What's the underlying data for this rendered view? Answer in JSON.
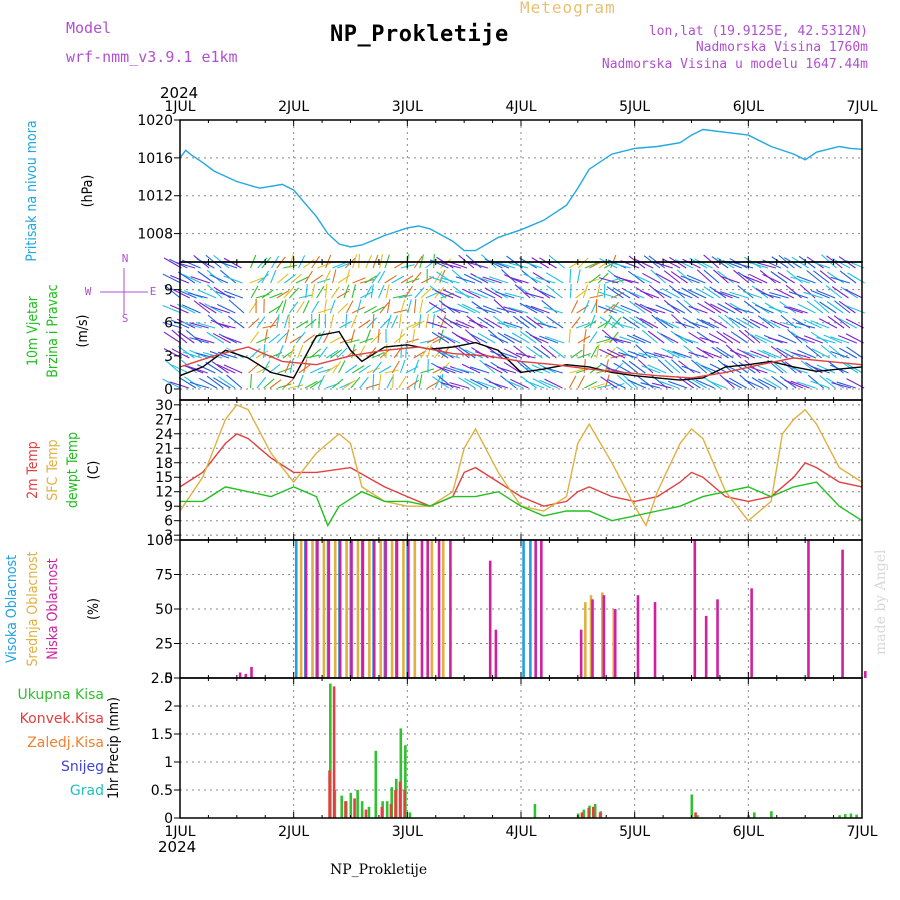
{
  "header": {
    "model_label": "Model",
    "model_name": "wrf-nmm_v3.9.1  e1km",
    "title": "NP_Prokletije",
    "subtitle": "Meteogram",
    "location": "lon,lat (19.9125E, 42.5312N)",
    "elevation": "Nadmorska Visina 1760m",
    "model_elevation": "Nadmorska Visina u modelu 1647.44m",
    "year_top": "2024",
    "year_bottom": "2024",
    "footer": "NP_Prokletije",
    "watermark": "made by Angel",
    "colors": {
      "model": "#b050d0",
      "title": "#000000",
      "subtitle": "#e8c070",
      "info": "#b050d0"
    }
  },
  "x_axis": {
    "labels": [
      "1JUL",
      "2JUL",
      "3JUL",
      "4JUL",
      "5JUL",
      "6JUL",
      "7JUL"
    ],
    "range_days": [
      0,
      6
    ]
  },
  "panels": [
    {
      "id": "pressure",
      "labels": [
        {
          "text": "Pritisak na nivou mora",
          "color": "#20a8e0"
        },
        {
          "text": "(hPa)",
          "color": "#000000"
        }
      ]
    },
    {
      "id": "wind",
      "labels": [
        {
          "text": "10m Vjetar",
          "color": "#20c020"
        },
        {
          "text": "Brzina i Pravac",
          "color": "#20c020"
        },
        {
          "text": "(m/s)",
          "color": "#000000"
        }
      ],
      "compass": {
        "north": "N",
        "south": "S",
        "west": "W",
        "east": "E",
        "color": "#b050d0"
      }
    },
    {
      "id": "temp",
      "labels": [
        {
          "text": "2m Temp",
          "color": "#e04040"
        },
        {
          "text": "SFC Temp",
          "color": "#e0b040"
        },
        {
          "text": "dewpt Temp",
          "color": "#20c020"
        },
        {
          "text": "(C)",
          "color": "#000000"
        }
      ]
    },
    {
      "id": "cloud",
      "labels": [
        {
          "text": "Visoka Oblacnost",
          "color": "#20a0e0"
        },
        {
          "text": "Srednja Oblacnost",
          "color": "#e0b040"
        },
        {
          "text": "Niska Oblacnost",
          "color": "#d020a0"
        },
        {
          "text": "(%)",
          "color": "#000000"
        }
      ]
    },
    {
      "id": "precip",
      "labels": [
        {
          "text": "1hr Precip (mm)",
          "color": "#000000"
        }
      ],
      "legend": [
        {
          "text": "Ukupna Kisa",
          "color": "#30c030"
        },
        {
          "text": "Konvek.Kisa",
          "color": "#e04040"
        },
        {
          "text": "Zaledj.Kisa",
          "color": "#f08030"
        },
        {
          "text": "Snijeg",
          "color": "#4040e0"
        },
        {
          "text": "Grad",
          "color": "#20c0c0"
        }
      ]
    }
  ],
  "chart_data": [
    {
      "type": "line",
      "ylabel": "(hPa)",
      "ylim": [
        1005,
        1020
      ],
      "yticks": [
        "1008",
        "1012",
        "1016",
        "1020"
      ],
      "grid": true,
      "series": [
        {
          "color": "#20a8e0",
          "x": [
            0,
            0.05,
            0.1,
            0.2,
            0.3,
            0.5,
            0.7,
            0.9,
            1.0,
            1.1,
            1.2,
            1.3,
            1.4,
            1.5,
            1.6,
            1.8,
            2.0,
            2.1,
            2.2,
            2.4,
            2.5,
            2.6,
            2.8,
            3.0,
            3.2,
            3.4,
            3.5,
            3.6,
            3.8,
            4.0,
            4.2,
            4.4,
            4.5,
            4.6,
            4.8,
            5.0,
            5.2,
            5.4,
            5.5,
            5.6,
            5.8,
            5.9,
            6.0
          ],
          "y": [
            1016,
            1016.8,
            1016.3,
            1015.5,
            1014.6,
            1013.5,
            1012.8,
            1013.2,
            1012.6,
            1011.2,
            1009.8,
            1008.0,
            1006.9,
            1006.6,
            1006.8,
            1007.8,
            1008.6,
            1008.8,
            1008.5,
            1007.2,
            1006.2,
            1006.2,
            1007.6,
            1008.4,
            1009.4,
            1011.0,
            1012.8,
            1014.8,
            1016.4,
            1017.0,
            1017.2,
            1017.6,
            1018.4,
            1019.0,
            1018.7,
            1018.4,
            1017.2,
            1016.4,
            1015.8,
            1016.6,
            1017.2,
            1017.0,
            1016.9
          ]
        }
      ]
    },
    {
      "type": "line",
      "ylabel": "(m/s)",
      "ylim": [
        -1,
        11.5
      ],
      "yticks": [
        "0",
        "3",
        "6",
        "9"
      ],
      "grid": true,
      "series": [
        {
          "name": "",
          "color": "#000000",
          "x": [
            0,
            0.2,
            0.4,
            0.6,
            0.8,
            1.0,
            1.2,
            1.4,
            1.5,
            1.6,
            1.8,
            2.0,
            2.2,
            2.4,
            2.6,
            2.8,
            3.0,
            3.2,
            3.4,
            3.6,
            3.8,
            4.0,
            4.2,
            4.4,
            4.6,
            4.8,
            5.0,
            5.2,
            5.4,
            5.6,
            5.8,
            6.0
          ],
          "y": [
            1.2,
            2.0,
            3.5,
            2.8,
            1.5,
            1.0,
            4.8,
            5.2,
            3.5,
            2.5,
            3.8,
            4.0,
            3.6,
            3.8,
            4.2,
            3.5,
            1.5,
            1.8,
            2.2,
            2.0,
            1.5,
            1.2,
            1.0,
            0.8,
            1.0,
            2.0,
            2.2,
            2.5,
            2.0,
            1.6,
            1.8,
            2.0
          ]
        },
        {
          "name": "",
          "color": "#e04040",
          "x": [
            0,
            0.3,
            0.6,
            0.9,
            1.2,
            1.5,
            1.8,
            2.1,
            2.4,
            2.7,
            3.0,
            3.3,
            3.6,
            3.9,
            4.2,
            4.5,
            4.8,
            5.1,
            5.4,
            5.7,
            6.0
          ],
          "y": [
            2.0,
            3.0,
            3.8,
            2.5,
            2.2,
            3.0,
            3.5,
            3.8,
            3.2,
            3.0,
            2.5,
            2.2,
            1.8,
            1.5,
            1.2,
            1.0,
            1.5,
            2.2,
            2.8,
            2.5,
            2.2
          ]
        }
      ]
    },
    {
      "type": "line",
      "ylabel": "(C)",
      "ylim": [
        2,
        31
      ],
      "yticks": [
        "3",
        "6",
        "9",
        "12",
        "15",
        "18",
        "21",
        "24",
        "27",
        "30"
      ],
      "grid": true,
      "series": [
        {
          "name": "2m Temp",
          "color": "#e04040",
          "x": [
            0,
            0.2,
            0.4,
            0.5,
            0.6,
            0.8,
            1.0,
            1.2,
            1.5,
            1.8,
            2.0,
            2.2,
            2.4,
            2.5,
            2.6,
            2.8,
            3.0,
            3.2,
            3.4,
            3.5,
            3.6,
            3.8,
            4.0,
            4.2,
            4.4,
            4.5,
            4.6,
            4.8,
            5.0,
            5.2,
            5.4,
            5.5,
            5.6,
            5.8,
            6.0
          ],
          "y": [
            13,
            16,
            22,
            24,
            23,
            19,
            16,
            16,
            17,
            13,
            11,
            9,
            11,
            16,
            17,
            14,
            11,
            9,
            10,
            12,
            13,
            11,
            10,
            11,
            14,
            16,
            15,
            11,
            10,
            11,
            15,
            18,
            17,
            14,
            13
          ]
        },
        {
          "name": "SFC Temp",
          "color": "#e0b040",
          "x": [
            0,
            0.2,
            0.4,
            0.5,
            0.6,
            0.8,
            1.0,
            1.2,
            1.3,
            1.4,
            1.5,
            1.6,
            1.8,
            2.0,
            2.2,
            2.4,
            2.5,
            2.6,
            2.8,
            3.0,
            3.2,
            3.4,
            3.5,
            3.6,
            3.8,
            4.0,
            4.1,
            4.2,
            4.4,
            4.5,
            4.6,
            4.8,
            5.0,
            5.2,
            5.3,
            5.4,
            5.5,
            5.6,
            5.8,
            6.0
          ],
          "y": [
            8,
            15,
            27,
            30,
            29,
            20,
            14,
            20,
            22,
            24,
            22,
            13,
            10,
            9,
            9,
            12,
            21,
            25,
            16,
            9,
            8,
            11,
            22,
            26,
            18,
            9,
            5,
            12,
            22,
            25,
            23,
            12,
            6,
            10,
            24,
            27,
            29,
            26,
            17,
            14
          ]
        },
        {
          "name": "dewpt Temp",
          "color": "#20c020",
          "x": [
            0,
            0.2,
            0.4,
            0.6,
            0.8,
            1.0,
            1.1,
            1.2,
            1.3,
            1.4,
            1.6,
            1.8,
            2.0,
            2.2,
            2.4,
            2.6,
            2.8,
            3.0,
            3.2,
            3.4,
            3.6,
            3.8,
            4.0,
            4.2,
            4.4,
            4.6,
            4.8,
            5.0,
            5.2,
            5.4,
            5.6,
            5.8,
            6.0
          ],
          "y": [
            10,
            10,
            13,
            12,
            11,
            13,
            12,
            11,
            5,
            9,
            12,
            10,
            10,
            9,
            11,
            11,
            12,
            9,
            7,
            8,
            8,
            6,
            7,
            8,
            9,
            11,
            12,
            13,
            11,
            13,
            14,
            9,
            6
          ]
        }
      ]
    },
    {
      "type": "bar",
      "ylabel": "(%)",
      "ylim": [
        0,
        100
      ],
      "yticks": [
        "0",
        "25",
        "50",
        "75",
        "100"
      ],
      "grid": true,
      "series": [
        {
          "name": "Visoka Oblacnost",
          "color": "#20a0e0",
          "x": [
            1.02,
            1.1,
            1.2,
            1.3,
            1.4,
            1.5,
            1.6,
            1.7,
            1.8,
            1.9,
            2.0,
            3.02,
            3.08
          ],
          "y": [
            100,
            100,
            100,
            100,
            100,
            100,
            100,
            100,
            100,
            100,
            100,
            100,
            100
          ]
        },
        {
          "name": "Srednja Oblacnost",
          "color": "#e0b040",
          "x": [
            1.05,
            1.15,
            1.25,
            1.35,
            1.45,
            1.55,
            1.65,
            1.75,
            1.85,
            1.95,
            2.05,
            2.2,
            2.3,
            3.55,
            3.6,
            3.7,
            3.8
          ],
          "y": [
            100,
            100,
            100,
            100,
            100,
            100,
            100,
            100,
            100,
            100,
            100,
            100,
            100,
            55,
            60,
            62,
            50
          ]
        },
        {
          "name": "Niska Oblacnost",
          "color": "#d020a0",
          "x": [
            0.5,
            0.55,
            0.6,
            1.08,
            1.18,
            1.28,
            1.38,
            1.48,
            1.58,
            1.68,
            1.78,
            1.88,
            1.98,
            2.1,
            2.15,
            2.25,
            2.35,
            2.7,
            2.75,
            3.1,
            3.15,
            3.5,
            3.6,
            3.7,
            3.8,
            4.0,
            4.15,
            4.5,
            4.6,
            4.7,
            5.0,
            5.5,
            5.8,
            6.0
          ],
          "y": [
            4,
            3,
            8,
            100,
            100,
            100,
            100,
            100,
            100,
            100,
            100,
            100,
            100,
            100,
            100,
            100,
            100,
            85,
            35,
            100,
            100,
            35,
            57,
            60,
            50,
            60,
            55,
            100,
            45,
            57,
            65,
            100,
            93,
            5
          ]
        }
      ]
    },
    {
      "type": "bar",
      "ylabel": "1hr Precip (mm)",
      "ylim": [
        0,
        2.5
      ],
      "yticks": [
        "0",
        "0.5",
        "1",
        "1.5",
        "2",
        "2.5"
      ],
      "grid": true,
      "series": [
        {
          "name": "Ukupna Kisa",
          "color": "#30c030",
          "x": [
            1.32,
            1.36,
            1.42,
            1.46,
            1.5,
            1.56,
            1.6,
            1.66,
            1.72,
            1.78,
            1.82,
            1.86,
            1.9,
            1.94,
            1.98,
            2.02,
            3.12,
            3.5,
            3.55,
            3.6,
            3.65,
            3.7,
            4.5,
            4.55,
            5.0,
            5.05,
            5.2,
            5.8,
            5.85,
            5.9,
            5.95
          ],
          "y": [
            2.4,
            0.5,
            0.4,
            0.3,
            0.45,
            0.5,
            0.3,
            0.2,
            1.2,
            0.3,
            0.3,
            0.55,
            0.7,
            1.6,
            1.3,
            0.1,
            0.25,
            0.08,
            0.15,
            0.22,
            0.25,
            0.12,
            0.42,
            0.05,
            0.05,
            0.1,
            0.12,
            0.05,
            0.07,
            0.08,
            0.06
          ]
        },
        {
          "name": "Konvek.Kisa",
          "color": "#e04040",
          "x": [
            1.3,
            1.34,
            1.44,
            1.52,
            1.62,
            1.76,
            1.84,
            1.88,
            1.92,
            1.96,
            3.52,
            3.58,
            3.62,
            3.68,
            4.52
          ],
          "y": [
            0.85,
            2.35,
            0.3,
            0.35,
            0.15,
            0.2,
            0.25,
            0.5,
            0.65,
            0.5,
            0.1,
            0.18,
            0.2,
            0.1,
            0.1
          ]
        }
      ]
    }
  ]
}
